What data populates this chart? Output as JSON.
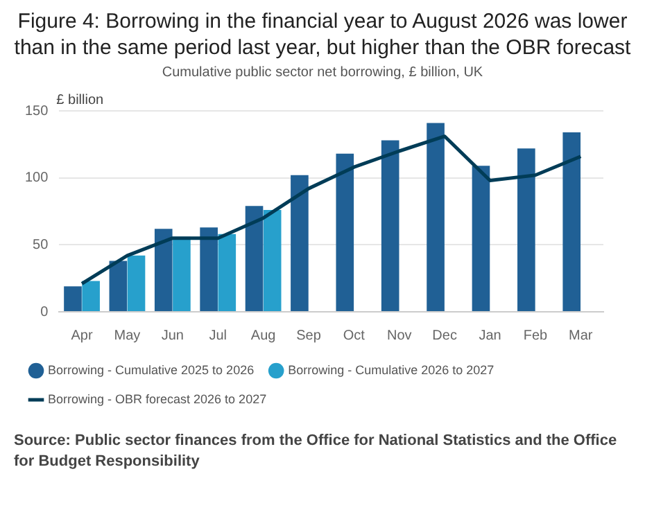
{
  "chart_data": {
    "type": "bar",
    "title": "Figure 4: Borrowing in the financial year to August 2026 was lower than in the same period last year, but higher than the OBR forecast",
    "subtitle": "Cumulative public sector net borrowing, £ billion, UK",
    "ylabel": "£ billion",
    "categories": [
      "Apr",
      "May",
      "Jun",
      "Jul",
      "Aug",
      "Sep",
      "Oct",
      "Nov",
      "Dec",
      "Jan",
      "Feb",
      "Mar"
    ],
    "series": [
      {
        "name": "Borrowing - Cumulative 2025 to 2026",
        "color": "#206095",
        "values": [
          19,
          38,
          62,
          63,
          79,
          102,
          118,
          128,
          141,
          109,
          122,
          134
        ]
      },
      {
        "name": "Borrowing - Cumulative 2026 to 2027",
        "color": "#27a0cc",
        "values": [
          23,
          42,
          56,
          58,
          76,
          null,
          null,
          null,
          null,
          null,
          null,
          null
        ]
      },
      {
        "name": "Borrowing - OBR forecast 2026 to 2027",
        "type": "line",
        "color": "#003c57",
        "values": [
          21,
          42,
          55,
          55,
          70,
          92,
          108,
          120,
          131,
          98,
          102,
          116
        ]
      }
    ],
    "ylim": [
      0,
      150
    ],
    "yticks": [
      0,
      50,
      100,
      150
    ],
    "grid": "y",
    "legend": "bottom",
    "marker": "none",
    "annotations": [
      "Source:  Public sector finances from the Office for National Statistics and the Office for Budget Responsibility"
    ]
  }
}
